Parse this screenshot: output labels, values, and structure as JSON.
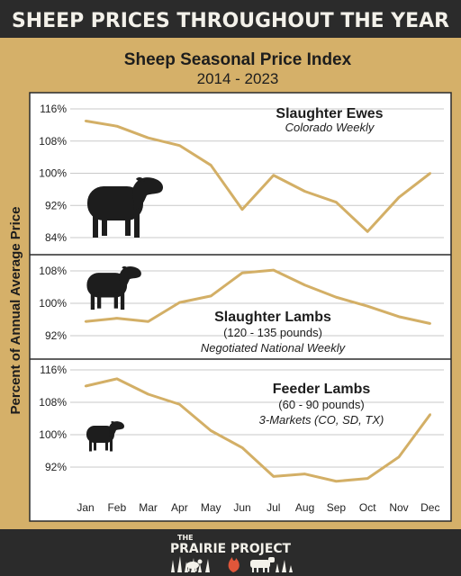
{
  "banner": {
    "title": "SHEEP PRICES THROUGHOUT THE YEAR"
  },
  "header": {
    "title": "Sheep Seasonal Price Index",
    "subtitle": "2014 - 2023"
  },
  "ylabel": "Percent of Annual Average Price",
  "footer": {
    "brand_small": "THE",
    "brand_main": "PRAIRIE PROJECT"
  },
  "colors": {
    "accent": "#d5b069",
    "line": "#d3af66",
    "dark": "#2b2b2b",
    "panel": "#ffffff"
  },
  "chart_data": [
    {
      "type": "line",
      "title": "Slaughter Ewes",
      "subtitle": "Colorado Weekly",
      "subtitle2": "",
      "icon": "ewe-silhouette-icon",
      "categories": [
        "Jan",
        "Feb",
        "Mar",
        "Apr",
        "May",
        "Jun",
        "Jul",
        "Aug",
        "Sep",
        "Oct",
        "Nov",
        "Dec"
      ],
      "values": [
        113,
        111.7,
        108.8,
        106.9,
        102,
        91,
        99.5,
        95.5,
        92.8,
        85.5,
        94,
        100
      ],
      "yticks": [
        84,
        92,
        100,
        108,
        116
      ],
      "ytick_labels": [
        "84%",
        "92%",
        "100%",
        "108%",
        "116%"
      ],
      "ylim": [
        84,
        116
      ]
    },
    {
      "type": "line",
      "title": "Slaughter Lambs",
      "subtitle": "(120 - 135 pounds)",
      "subtitle2": "Negotiated National Weekly",
      "icon": "lamb-silhouette-icon",
      "categories": [
        "Jan",
        "Feb",
        "Mar",
        "Apr",
        "May",
        "Jun",
        "Jul",
        "Aug",
        "Sep",
        "Oct",
        "Nov",
        "Dec"
      ],
      "values": [
        95.5,
        96.3,
        95.5,
        100.2,
        101.8,
        107.5,
        108.2,
        104.5,
        101.5,
        99.3,
        96.7,
        95
      ],
      "yticks": [
        92,
        100,
        108
      ],
      "ytick_labels": [
        "92%",
        "100%",
        "108%"
      ],
      "ylim": [
        88,
        112
      ]
    },
    {
      "type": "line",
      "title": "Feeder Lambs",
      "subtitle": "(60 - 90 pounds)",
      "subtitle2": "3-Markets (CO, SD, TX)",
      "icon": "small-lamb-silhouette-icon",
      "categories": [
        "Jan",
        "Feb",
        "Mar",
        "Apr",
        "May",
        "Jun",
        "Jul",
        "Aug",
        "Sep",
        "Oct",
        "Nov",
        "Dec"
      ],
      "values": [
        112,
        113.8,
        110,
        107.5,
        101,
        96.8,
        89.7,
        90.3,
        88.5,
        89.2,
        94.5,
        105
      ],
      "yticks": [
        92,
        100,
        108,
        116
      ],
      "ytick_labels": [
        "92%",
        "100%",
        "108%",
        "116%"
      ],
      "ylim": [
        84,
        118
      ]
    }
  ]
}
